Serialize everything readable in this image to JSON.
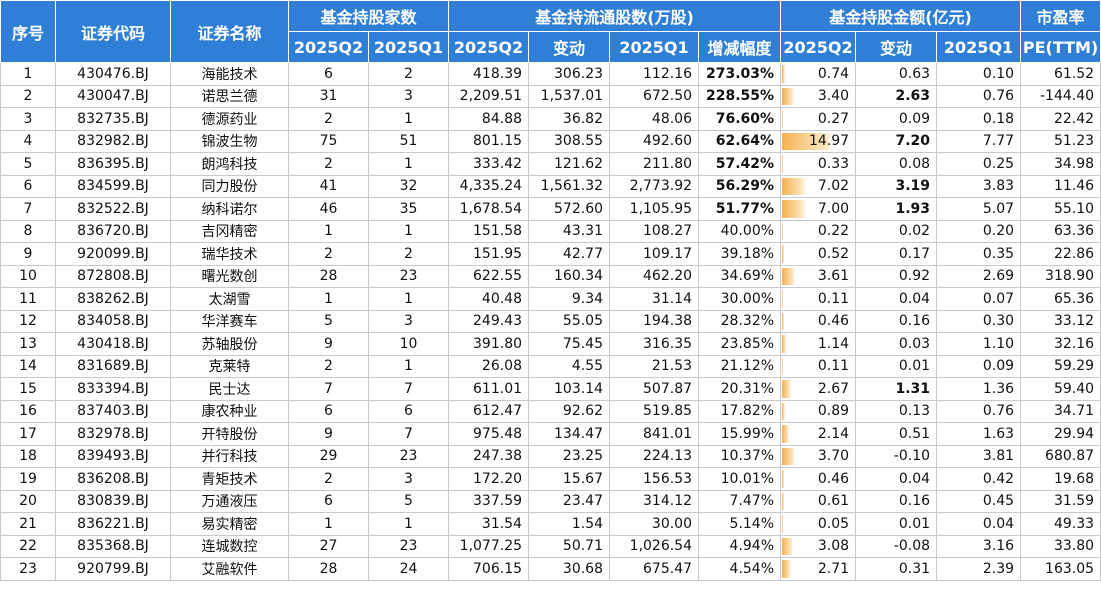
{
  "header": {
    "seq": "序号",
    "code": "证券代码",
    "name": "证券名称",
    "holders_group": "基金持股家数",
    "shares_group": "基金持流通股数(万股)",
    "amount_group": "基金持股金额(亿元)",
    "pe_top": "市盈率",
    "pe_bottom": "PE(TTM)",
    "q2": "2025Q2",
    "q1": "2025Q1",
    "change": "变动",
    "growth": "增减幅度"
  },
  "highlight_color": "#e8222a",
  "header_color": "#2f7fd6",
  "bar_color": "#f4b14f",
  "amount_bar_max": 14.97,
  "rows": [
    {
      "seq": "1",
      "code": "430476.BJ",
      "name": "海能技术",
      "h_q2": "6",
      "h_q1": "2",
      "s_q2": "418.39",
      "s_chg": "306.23",
      "s_q1": "112.16",
      "growth": "273.03%",
      "growth_hot": true,
      "a_q2": "0.74",
      "a_chg": "0.63",
      "a_chg_hot": false,
      "a_q1": "0.10",
      "pe": "61.52"
    },
    {
      "seq": "2",
      "code": "430047.BJ",
      "name": "诺思兰德",
      "h_q2": "31",
      "h_q1": "3",
      "s_q2": "2,209.51",
      "s_chg": "1,537.01",
      "s_q1": "672.50",
      "growth": "228.55%",
      "growth_hot": true,
      "a_q2": "3.40",
      "a_chg": "2.63",
      "a_chg_hot": true,
      "a_q1": "0.76",
      "pe": "-144.40"
    },
    {
      "seq": "3",
      "code": "832735.BJ",
      "name": "德源药业",
      "h_q2": "2",
      "h_q1": "1",
      "s_q2": "84.88",
      "s_chg": "36.82",
      "s_q1": "48.06",
      "growth": "76.60%",
      "growth_hot": true,
      "a_q2": "0.27",
      "a_chg": "0.09",
      "a_chg_hot": false,
      "a_q1": "0.18",
      "pe": "22.42"
    },
    {
      "seq": "4",
      "code": "832982.BJ",
      "name": "锦波生物",
      "h_q2": "75",
      "h_q1": "51",
      "s_q2": "801.15",
      "s_chg": "308.55",
      "s_q1": "492.60",
      "growth": "62.64%",
      "growth_hot": true,
      "a_q2": "14.97",
      "a_chg": "7.20",
      "a_chg_hot": true,
      "a_q1": "7.77",
      "pe": "51.23"
    },
    {
      "seq": "5",
      "code": "836395.BJ",
      "name": "朗鸿科技",
      "h_q2": "2",
      "h_q1": "1",
      "s_q2": "333.42",
      "s_chg": "121.62",
      "s_q1": "211.80",
      "growth": "57.42%",
      "growth_hot": true,
      "a_q2": "0.33",
      "a_chg": "0.08",
      "a_chg_hot": false,
      "a_q1": "0.25",
      "pe": "34.98"
    },
    {
      "seq": "6",
      "code": "834599.BJ",
      "name": "同力股份",
      "h_q2": "41",
      "h_q1": "32",
      "s_q2": "4,335.24",
      "s_chg": "1,561.32",
      "s_q1": "2,773.92",
      "growth": "56.29%",
      "growth_hot": true,
      "a_q2": "7.02",
      "a_chg": "3.19",
      "a_chg_hot": true,
      "a_q1": "3.83",
      "pe": "11.46"
    },
    {
      "seq": "7",
      "code": "832522.BJ",
      "name": "纳科诺尔",
      "h_q2": "46",
      "h_q1": "35",
      "s_q2": "1,678.54",
      "s_chg": "572.60",
      "s_q1": "1,105.95",
      "growth": "51.77%",
      "growth_hot": true,
      "a_q2": "7.00",
      "a_chg": "1.93",
      "a_chg_hot": true,
      "a_q1": "5.07",
      "pe": "55.10"
    },
    {
      "seq": "8",
      "code": "836720.BJ",
      "name": "吉冈精密",
      "h_q2": "1",
      "h_q1": "1",
      "s_q2": "151.58",
      "s_chg": "43.31",
      "s_q1": "108.27",
      "growth": "40.00%",
      "growth_hot": false,
      "a_q2": "0.22",
      "a_chg": "0.02",
      "a_chg_hot": false,
      "a_q1": "0.20",
      "pe": "63.36"
    },
    {
      "seq": "9",
      "code": "920099.BJ",
      "name": "瑞华技术",
      "h_q2": "2",
      "h_q1": "2",
      "s_q2": "151.95",
      "s_chg": "42.77",
      "s_q1": "109.17",
      "growth": "39.18%",
      "growth_hot": false,
      "a_q2": "0.52",
      "a_chg": "0.17",
      "a_chg_hot": false,
      "a_q1": "0.35",
      "pe": "22.86"
    },
    {
      "seq": "10",
      "code": "872808.BJ",
      "name": "曙光数创",
      "h_q2": "28",
      "h_q1": "23",
      "s_q2": "622.55",
      "s_chg": "160.34",
      "s_q1": "462.20",
      "growth": "34.69%",
      "growth_hot": false,
      "a_q2": "3.61",
      "a_chg": "0.92",
      "a_chg_hot": false,
      "a_q1": "2.69",
      "pe": "318.90"
    },
    {
      "seq": "11",
      "code": "838262.BJ",
      "name": "太湖雪",
      "h_q2": "1",
      "h_q1": "1",
      "s_q2": "40.48",
      "s_chg": "9.34",
      "s_q1": "31.14",
      "growth": "30.00%",
      "growth_hot": false,
      "a_q2": "0.11",
      "a_chg": "0.04",
      "a_chg_hot": false,
      "a_q1": "0.07",
      "pe": "65.36"
    },
    {
      "seq": "12",
      "code": "834058.BJ",
      "name": "华洋赛车",
      "h_q2": "5",
      "h_q1": "3",
      "s_q2": "249.43",
      "s_chg": "55.05",
      "s_q1": "194.38",
      "growth": "28.32%",
      "growth_hot": false,
      "a_q2": "0.46",
      "a_chg": "0.16",
      "a_chg_hot": false,
      "a_q1": "0.30",
      "pe": "33.12"
    },
    {
      "seq": "13",
      "code": "430418.BJ",
      "name": "苏轴股份",
      "h_q2": "9",
      "h_q1": "10",
      "s_q2": "391.80",
      "s_chg": "75.45",
      "s_q1": "316.35",
      "growth": "23.85%",
      "growth_hot": false,
      "a_q2": "1.14",
      "a_chg": "0.03",
      "a_chg_hot": false,
      "a_q1": "1.10",
      "pe": "32.16"
    },
    {
      "seq": "14",
      "code": "831689.BJ",
      "name": "克莱特",
      "h_q2": "2",
      "h_q1": "1",
      "s_q2": "26.08",
      "s_chg": "4.55",
      "s_q1": "21.53",
      "growth": "21.12%",
      "growth_hot": false,
      "a_q2": "0.11",
      "a_chg": "0.01",
      "a_chg_hot": false,
      "a_q1": "0.09",
      "pe": "59.29"
    },
    {
      "seq": "15",
      "code": "833394.BJ",
      "name": "民士达",
      "h_q2": "7",
      "h_q1": "7",
      "s_q2": "611.01",
      "s_chg": "103.14",
      "s_q1": "507.87",
      "growth": "20.31%",
      "growth_hot": false,
      "a_q2": "2.67",
      "a_chg": "1.31",
      "a_chg_hot": true,
      "a_q1": "1.36",
      "pe": "59.40"
    },
    {
      "seq": "16",
      "code": "837403.BJ",
      "name": "康农种业",
      "h_q2": "6",
      "h_q1": "6",
      "s_q2": "612.47",
      "s_chg": "92.62",
      "s_q1": "519.85",
      "growth": "17.82%",
      "growth_hot": false,
      "a_q2": "0.89",
      "a_chg": "0.13",
      "a_chg_hot": false,
      "a_q1": "0.76",
      "pe": "34.71"
    },
    {
      "seq": "17",
      "code": "832978.BJ",
      "name": "开特股份",
      "h_q2": "9",
      "h_q1": "7",
      "s_q2": "975.48",
      "s_chg": "134.47",
      "s_q1": "841.01",
      "growth": "15.99%",
      "growth_hot": false,
      "a_q2": "2.14",
      "a_chg": "0.51",
      "a_chg_hot": false,
      "a_q1": "1.63",
      "pe": "29.94"
    },
    {
      "seq": "18",
      "code": "839493.BJ",
      "name": "并行科技",
      "h_q2": "29",
      "h_q1": "23",
      "s_q2": "247.38",
      "s_chg": "23.25",
      "s_q1": "224.13",
      "growth": "10.37%",
      "growth_hot": false,
      "a_q2": "3.70",
      "a_chg": "-0.10",
      "a_chg_hot": false,
      "a_q1": "3.81",
      "pe": "680.87"
    },
    {
      "seq": "19",
      "code": "836208.BJ",
      "name": "青矩技术",
      "h_q2": "2",
      "h_q1": "3",
      "s_q2": "172.20",
      "s_chg": "15.67",
      "s_q1": "156.53",
      "growth": "10.01%",
      "growth_hot": false,
      "a_q2": "0.46",
      "a_chg": "0.04",
      "a_chg_hot": false,
      "a_q1": "0.42",
      "pe": "19.68"
    },
    {
      "seq": "20",
      "code": "830839.BJ",
      "name": "万通液压",
      "h_q2": "6",
      "h_q1": "5",
      "s_q2": "337.59",
      "s_chg": "23.47",
      "s_q1": "314.12",
      "growth": "7.47%",
      "growth_hot": false,
      "a_q2": "0.61",
      "a_chg": "0.16",
      "a_chg_hot": false,
      "a_q1": "0.45",
      "pe": "31.59"
    },
    {
      "seq": "21",
      "code": "836221.BJ",
      "name": "易实精密",
      "h_q2": "1",
      "h_q1": "1",
      "s_q2": "31.54",
      "s_chg": "1.54",
      "s_q1": "30.00",
      "growth": "5.14%",
      "growth_hot": false,
      "a_q2": "0.05",
      "a_chg": "0.01",
      "a_chg_hot": false,
      "a_q1": "0.04",
      "pe": "49.33"
    },
    {
      "seq": "22",
      "code": "835368.BJ",
      "name": "连城数控",
      "h_q2": "27",
      "h_q1": "23",
      "s_q2": "1,077.25",
      "s_chg": "50.71",
      "s_q1": "1,026.54",
      "growth": "4.94%",
      "growth_hot": false,
      "a_q2": "3.08",
      "a_chg": "-0.08",
      "a_chg_hot": false,
      "a_q1": "3.16",
      "pe": "33.80"
    },
    {
      "seq": "23",
      "code": "920799.BJ",
      "name": "艾融软件",
      "h_q2": "28",
      "h_q1": "24",
      "s_q2": "706.15",
      "s_chg": "30.68",
      "s_q1": "675.47",
      "growth": "4.54%",
      "growth_hot": false,
      "a_q2": "2.71",
      "a_chg": "0.31",
      "a_chg_hot": false,
      "a_q1": "2.39",
      "pe": "163.05"
    }
  ]
}
